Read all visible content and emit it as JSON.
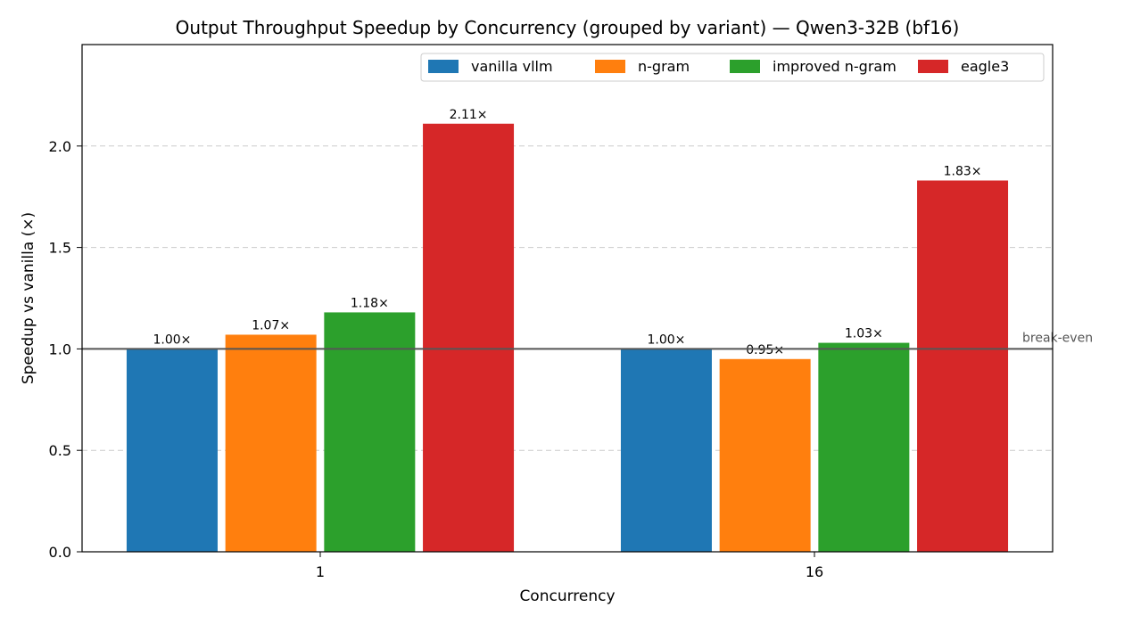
{
  "chart_data": {
    "type": "bar",
    "title": "Output Throughput Speedup by Concurrency (grouped by variant) — Qwen3-32B (bf16)",
    "xlabel": "Concurrency",
    "ylabel": "Speedup vs vanilla (×)",
    "categories": [
      "1",
      "16"
    ],
    "ylim": [
      0,
      2.5
    ],
    "yticks": [
      0.0,
      0.5,
      1.0,
      1.5,
      2.0
    ],
    "ytick_labels": [
      "0.0",
      "0.5",
      "1.0",
      "1.5",
      "2.0"
    ],
    "grid": "horizontal dashed",
    "legend_position": "top-right",
    "series": [
      {
        "name": "vanilla vllm",
        "color": "#1f77b4",
        "values": [
          1.0,
          1.0
        ],
        "labels": [
          "1.00×",
          "1.00×"
        ]
      },
      {
        "name": "n-gram",
        "color": "#ff7f0e",
        "values": [
          1.07,
          0.95
        ],
        "labels": [
          "1.07×",
          "0.95×"
        ]
      },
      {
        "name": "improved n-gram",
        "color": "#2ca02c",
        "values": [
          1.18,
          1.03
        ],
        "labels": [
          "1.18×",
          "1.03×"
        ]
      },
      {
        "name": "eagle3",
        "color": "#d62728",
        "values": [
          2.11,
          1.83
        ],
        "labels": [
          "2.11×",
          "1.83×"
        ]
      }
    ],
    "reference_line": {
      "value": 1.0,
      "label": "break-even",
      "color": "#555555"
    }
  }
}
